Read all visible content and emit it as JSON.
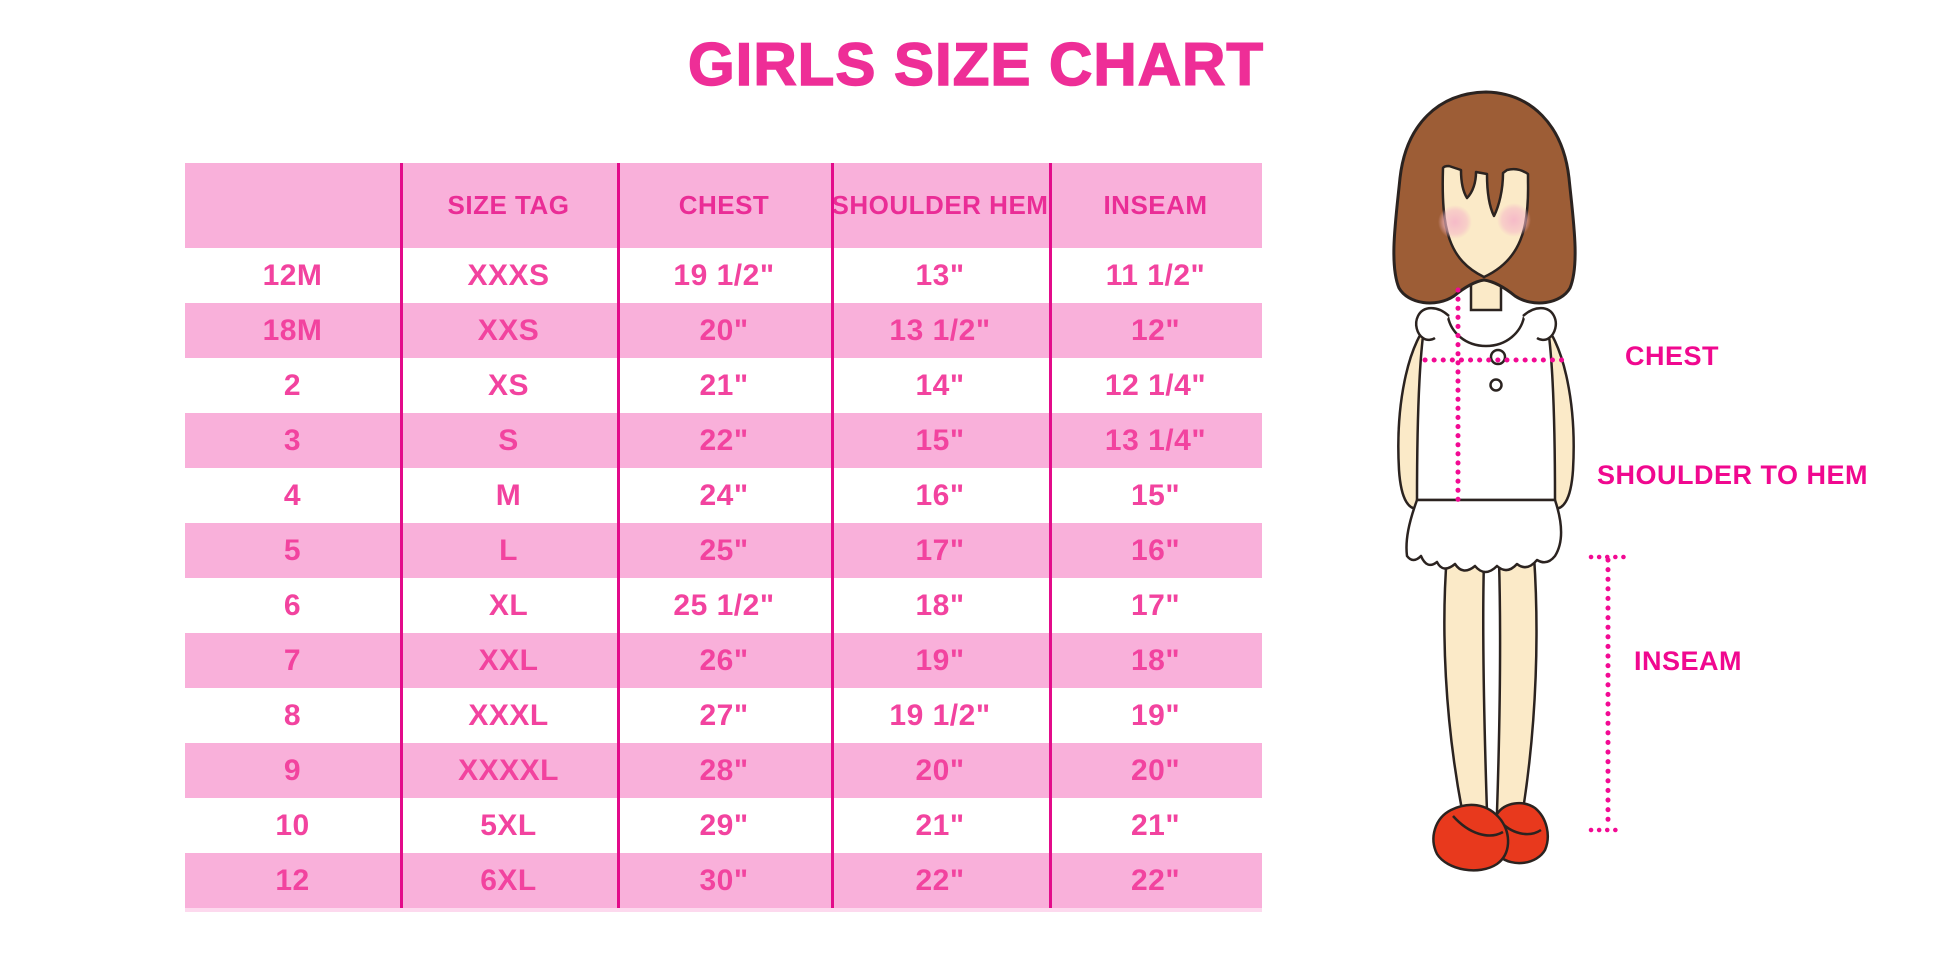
{
  "title": "GIRLS SIZE CHART",
  "figure": {
    "labels": {
      "chest": "CHEST",
      "shoulder_to_hem": "SHOULDER TO HEM",
      "inseam": "INSEAM"
    }
  },
  "colors": {
    "title_pink": "#ee2e97",
    "table_row_pink": "#f9b0da",
    "column_divider_magenta": "#e30b8a",
    "cell_text_pink": "#f2439f",
    "label_magenta": "#f0088f",
    "dotted_line_pink": "#f20a93",
    "hair_brown": "#9d5d36",
    "skin_tone": "#fbeac8",
    "blush_pink": "#f5b8c8",
    "shoe_red": "#e8391d",
    "illustration_outline": "#2b2320"
  },
  "chart_data": {
    "type": "table",
    "title": "GIRLS SIZE CHART",
    "columns": [
      "",
      "SIZE TAG",
      "CHEST",
      "SHOULDER HEM",
      "INSEAM"
    ],
    "rows": [
      [
        "12M",
        "XXXS",
        "19 1/2\"",
        "13\"",
        "11 1/2\""
      ],
      [
        "18M",
        "XXS",
        "20\"",
        "13 1/2\"",
        "12\""
      ],
      [
        "2",
        "XS",
        "21\"",
        "14\"",
        "12 1/4\""
      ],
      [
        "3",
        "S",
        "22\"",
        "15\"",
        "13 1/4\""
      ],
      [
        "4",
        "M",
        "24\"",
        "16\"",
        "15\""
      ],
      [
        "5",
        "L",
        "25\"",
        "17\"",
        "16\""
      ],
      [
        "6",
        "XL",
        "25 1/2\"",
        "18\"",
        "17\""
      ],
      [
        "7",
        "XXL",
        "26\"",
        "19\"",
        "18\""
      ],
      [
        "8",
        "XXXL",
        "27\"",
        "19 1/2\"",
        "19\""
      ],
      [
        "9",
        "XXXXL",
        "28\"",
        "20\"",
        "20\""
      ],
      [
        "10",
        "5XL",
        "29\"",
        "21\"",
        "21\""
      ],
      [
        "12",
        "6XL",
        "30\"",
        "22\"",
        "22\""
      ]
    ],
    "layout": {
      "alternating_row_fill": [
        "white",
        "pink"
      ],
      "header_fill": "pink",
      "grid": "vertical column dividers only"
    }
  }
}
